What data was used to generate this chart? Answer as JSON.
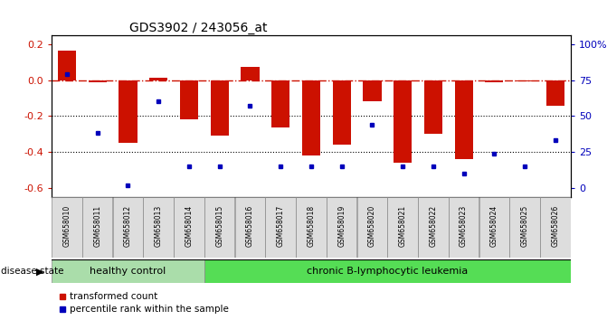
{
  "title": "GDS3902 / 243056_at",
  "samples": [
    "GSM658010",
    "GSM658011",
    "GSM658012",
    "GSM658013",
    "GSM658014",
    "GSM658015",
    "GSM658016",
    "GSM658017",
    "GSM658018",
    "GSM658019",
    "GSM658020",
    "GSM658021",
    "GSM658022",
    "GSM658023",
    "GSM658024",
    "GSM658025",
    "GSM658026"
  ],
  "bar_values": [
    0.165,
    -0.01,
    -0.35,
    0.015,
    -0.22,
    -0.31,
    0.075,
    -0.265,
    -0.42,
    -0.36,
    -0.12,
    -0.46,
    -0.3,
    -0.44,
    -0.01,
    -0.005,
    -0.145
  ],
  "percentile_values": [
    79,
    38,
    2,
    60,
    15,
    15,
    57,
    15,
    15,
    15,
    44,
    15,
    15,
    10,
    24,
    15,
    33
  ],
  "bar_color": "#CC1100",
  "percentile_color": "#0000BB",
  "healthy_count": 5,
  "healthy_label": "healthy control",
  "leukemia_label": "chronic B-lymphocytic leukemia",
  "disease_state_label": "disease state",
  "healthy_color": "#AADDAA",
  "leukemia_color": "#55DD55",
  "ylim_left": [
    -0.65,
    0.25
  ],
  "yticks_left": [
    -0.6,
    -0.4,
    -0.2,
    0.0,
    0.2
  ],
  "yticks_right": [
    0,
    25,
    50,
    75,
    100
  ],
  "dotted_lines": [
    -0.2,
    -0.4
  ],
  "legend_bar_label": "transformed count",
  "legend_pct_label": "percentile rank within the sample"
}
